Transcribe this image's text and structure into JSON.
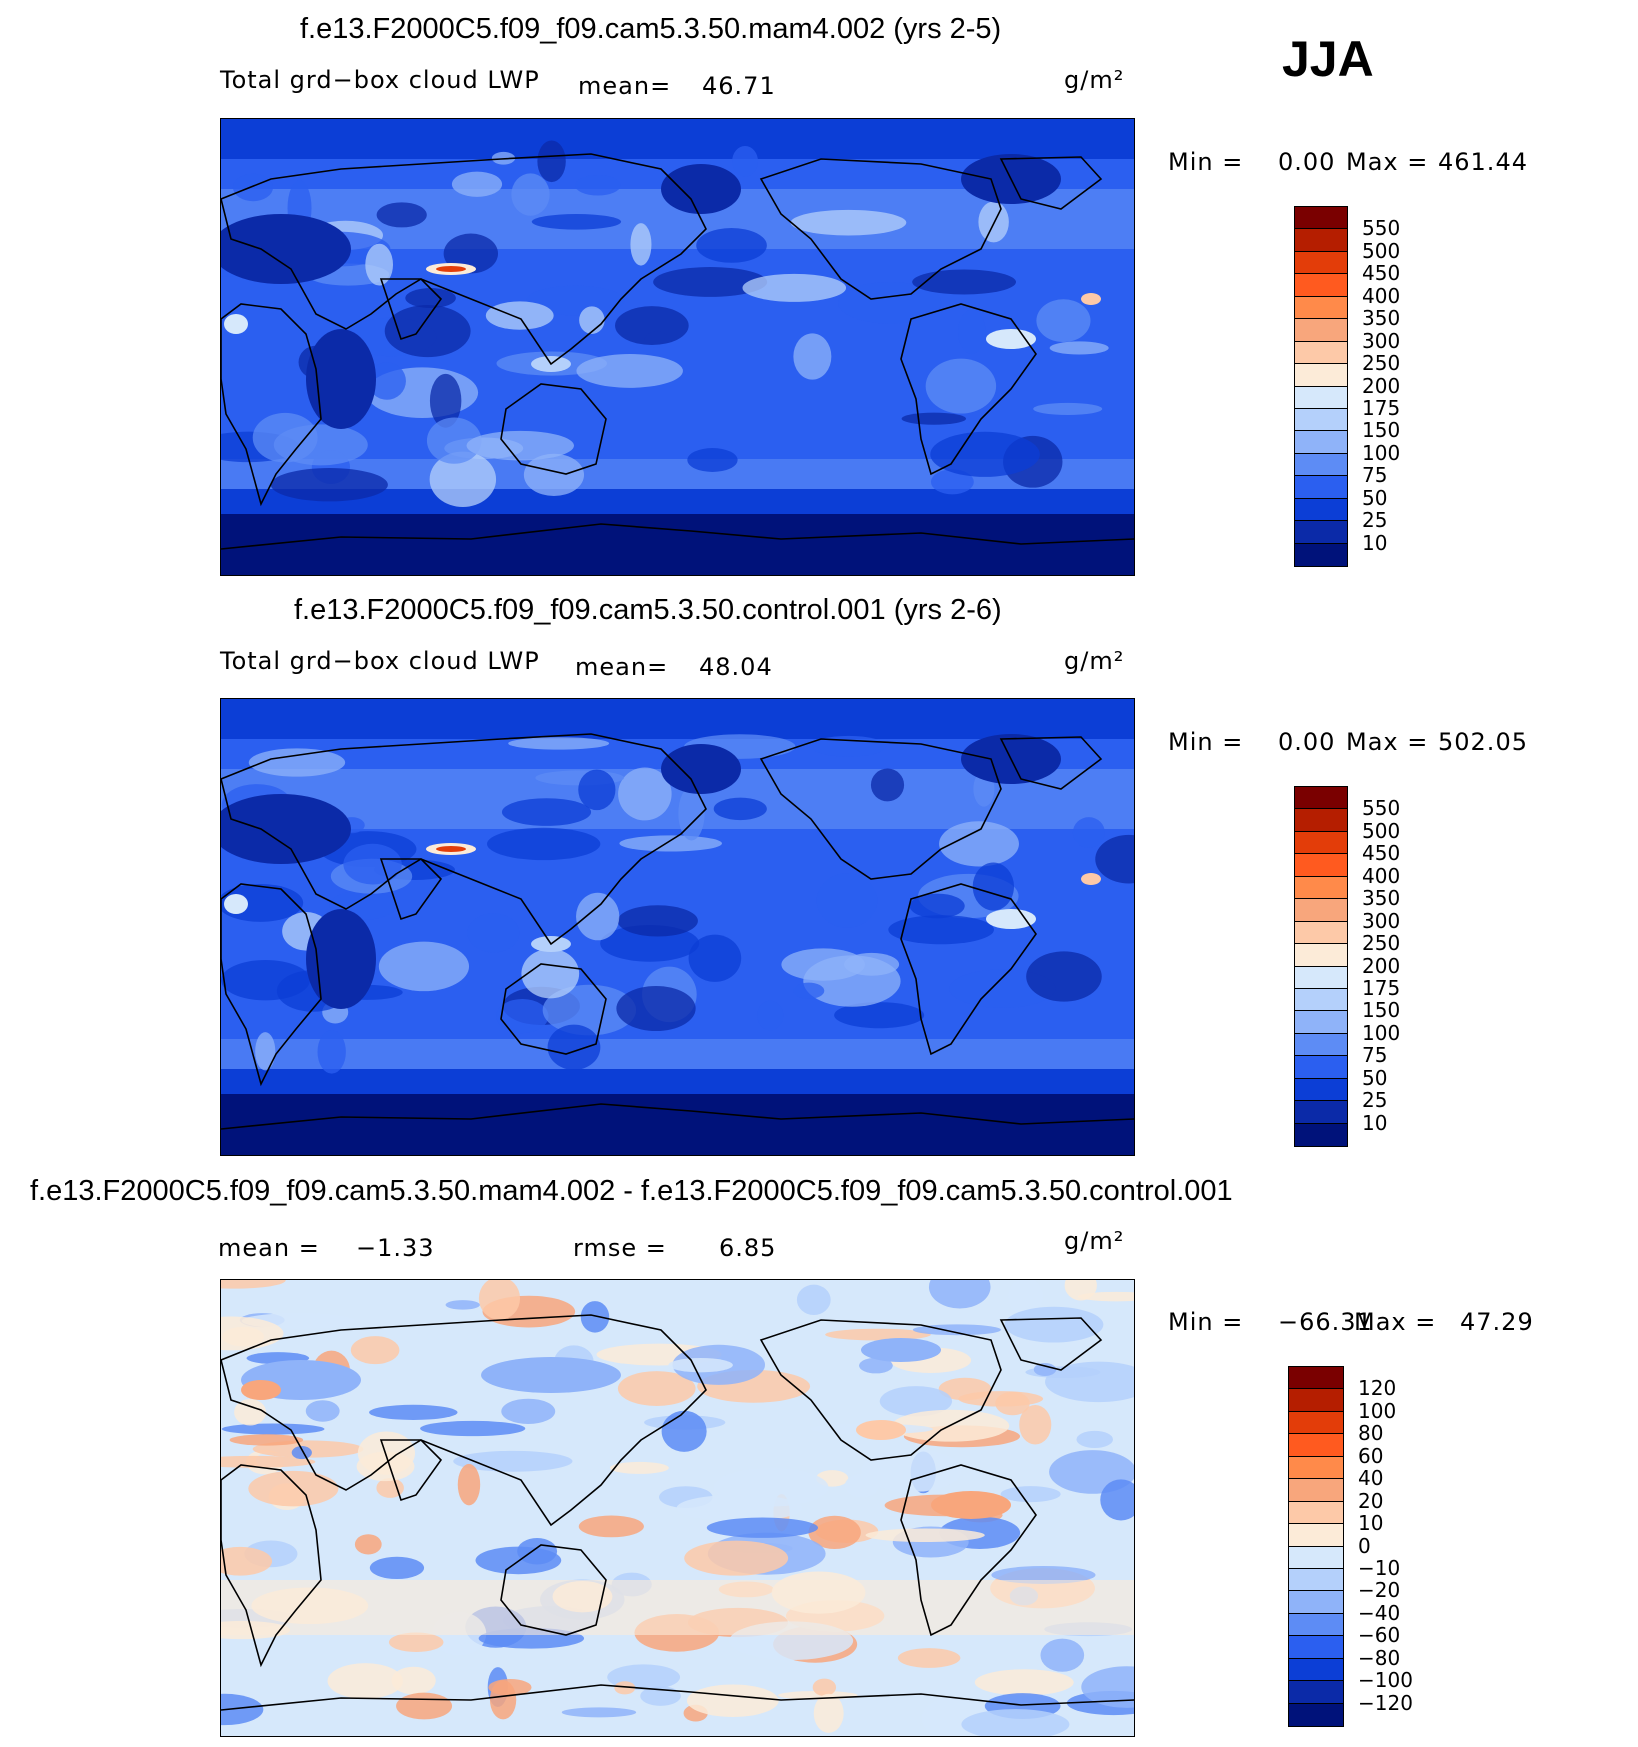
{
  "season": "JJA",
  "panels": [
    {
      "title": "f.e13.F2000C5.f09_f09.cam5.3.50.mam4.002 (yrs 2-5)",
      "variable": "Total grd−box cloud LWP",
      "stat1_label": "mean=",
      "stat1_value": "46.71",
      "stat2_label": "",
      "stat2_value": "",
      "units": "g/m²",
      "min_label": "Min =",
      "min_value": "0.00",
      "max_label": "Max =",
      "max_value": "461.44",
      "colorbar": {
        "labels": [
          "550",
          "500",
          "450",
          "400",
          "350",
          "300",
          "250",
          "200",
          "175",
          "150",
          "100",
          "75",
          "50",
          "25",
          "10"
        ],
        "colors": [
          "#7a0000",
          "#b51e00",
          "#e33d09",
          "#ff5a1f",
          "#ff8a4a",
          "#f8a67c",
          "#fdc9a8",
          "#fcebd8",
          "#d6e8fb",
          "#b4d0fb",
          "#8fb3f9",
          "#5d8cf5",
          "#2b5ff0",
          "#0c3ed6",
          "#0b2aa8",
          "#00127a"
        ]
      },
      "map_palette": "abs"
    },
    {
      "title": "f.e13.F2000C5.f09_f09.cam5.3.50.control.001 (yrs 2-6)",
      "variable": "Total grd−box cloud LWP",
      "stat1_label": "mean=",
      "stat1_value": "48.04",
      "stat2_label": "",
      "stat2_value": "",
      "units": "g/m²",
      "min_label": "Min =",
      "min_value": "0.00",
      "max_label": "Max =",
      "max_value": "502.05",
      "colorbar": {
        "labels": [
          "550",
          "500",
          "450",
          "400",
          "350",
          "300",
          "250",
          "200",
          "175",
          "150",
          "100",
          "75",
          "50",
          "25",
          "10"
        ],
        "colors": [
          "#7a0000",
          "#b51e00",
          "#e33d09",
          "#ff5a1f",
          "#ff8a4a",
          "#f8a67c",
          "#fdc9a8",
          "#fcebd8",
          "#d6e8fb",
          "#b4d0fb",
          "#8fb3f9",
          "#5d8cf5",
          "#2b5ff0",
          "#0c3ed6",
          "#0b2aa8",
          "#00127a"
        ]
      },
      "map_palette": "abs"
    },
    {
      "title": "f.e13.F2000C5.f09_f09.cam5.3.50.mam4.002 - f.e13.F2000C5.f09_f09.cam5.3.50.control.001",
      "variable": "",
      "stat1_label": "mean =",
      "stat1_value": "−1.33",
      "stat2_label": "rmse =",
      "stat2_value": "6.85",
      "units": "g/m²",
      "min_label": "Min =",
      "min_value": "−66.31",
      "max_label": "Max =",
      "max_value": "47.29",
      "colorbar": {
        "labels": [
          "120",
          "100",
          "80",
          "60",
          "40",
          "20",
          "10",
          "0",
          "−10",
          "−20",
          "−40",
          "−60",
          "−80",
          "−100",
          "−120"
        ],
        "colors": [
          "#7a0000",
          "#b51e00",
          "#e33d09",
          "#ff5a1f",
          "#ff8a4a",
          "#f8a67c",
          "#fdc9a8",
          "#fcebd8",
          "#d6e8fb",
          "#b4d0fb",
          "#8fb3f9",
          "#5d8cf5",
          "#2b5ff0",
          "#0c3ed6",
          "#0b2aa8",
          "#00127a"
        ]
      },
      "map_palette": "diff"
    }
  ]
}
